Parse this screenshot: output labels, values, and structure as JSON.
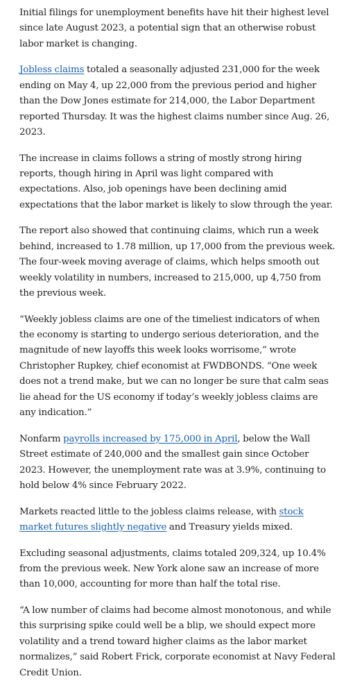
{
  "paragraphs": [
    {
      "parts": [
        {
          "text": "Initial filings for unemployment benefits have hit their highest level since late August 2023, a potential sign that an otherwise robust labor market is changing."
        }
      ]
    },
    {
      "parts": [
        {
          "text": "Jobless claims",
          "link": true
        },
        {
          "text": " totaled a seasonally adjusted 231,000 for the week ending on May 4, up 22,000 from the previous period and higher than the Dow Jones estimate for 214,000, the Labor Department reported Thursday. It was the highest claims number since Aug. 26, 2023."
        }
      ]
    },
    {
      "parts": [
        {
          "text": "The increase in claims follows a string of mostly strong hiring reports, though hiring in April was light compared with expectations. Also, job openings have been declining amid expectations that the labor market is likely to slow through the year."
        }
      ]
    },
    {
      "parts": [
        {
          "text": "The report also showed that continuing claims, which run a week behind, increased to 1.78 million, up 17,000 from the previous week. The four-week moving average of claims, which helps smooth out weekly volatility in numbers, increased to 215,000, up 4,750 from the previous week."
        }
      ]
    },
    {
      "parts": [
        {
          "text": "“Weekly jobless claims are one of the timeliest indicators of when the economy is starting to undergo serious deterioration, and the magnitude of new layoffs this week looks worrisome,” wrote Christopher Rupkey, chief economist at FWDBONDS. “One week does not a trend make, but we can no longer be sure that calm seas lie ahead for the US economy if today’s weekly jobless claims are any indication.”"
        }
      ]
    },
    {
      "parts": [
        {
          "text": "Nonfarm "
        },
        {
          "text": "payrolls increased by 175,000 in April",
          "link": true
        },
        {
          "text": ", below the Wall Street estimate of 240,000 and the smallest gain since October 2023. However, the unemployment rate was at 3.9%, continuing to hold below 4% since February 2022."
        }
      ]
    },
    {
      "parts": [
        {
          "text": "Markets reacted little to the jobless claims release, with "
        },
        {
          "text": "stock market futures slightly negative",
          "link": true
        },
        {
          "text": " and Treasury yields mixed."
        }
      ]
    },
    {
      "parts": [
        {
          "text": "Excluding seasonal adjustments, claims totaled 209,324, up 10.4% from the previous week. New York alone saw an increase of more than 10,000, accounting for more than half the total rise."
        }
      ]
    },
    {
      "parts": [
        {
          "text": "“A low number of claims had become almost monotonous, and while this surprising spike could well be a blip, we should expect more volatility and a trend toward higher claims as the labor market normalizes,” said Robert Frick, corporate economist at Navy Federal Credit Union."
        }
      ]
    }
  ]
}
